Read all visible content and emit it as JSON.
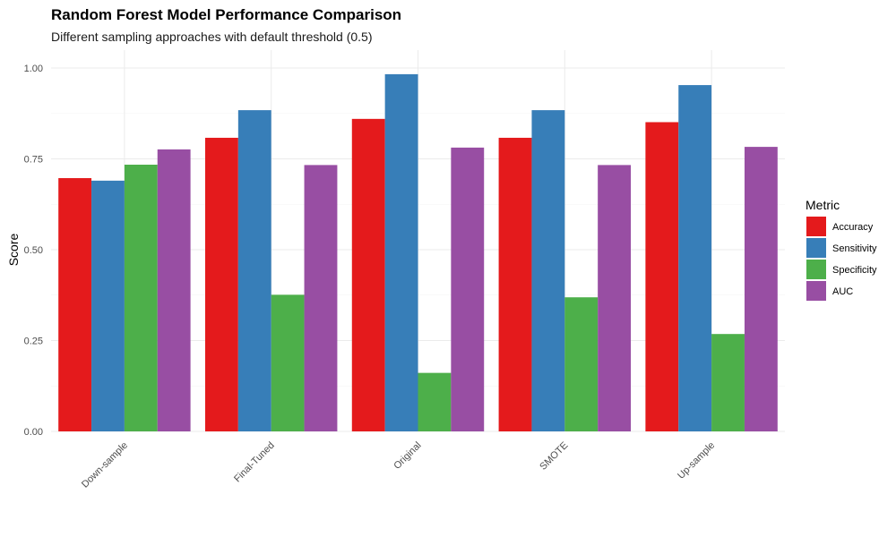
{
  "chart_data": {
    "type": "bar",
    "title": "Random Forest Model Performance Comparison",
    "subtitle": "Different sampling approaches with default threshold (0.5)",
    "xlabel": "",
    "ylabel": "Score",
    "ylim": [
      0,
      1.0
    ],
    "yticks": [
      0.0,
      0.25,
      0.5,
      0.75,
      1.0
    ],
    "ytick_labels": [
      "0.00",
      "0.25",
      "0.50",
      "0.75",
      "1.00"
    ],
    "grid": true,
    "legend_title": "Metric",
    "legend_position": "right",
    "categories": [
      "Down-sample",
      "Final-Tuned",
      "Original",
      "SMOTE",
      "Up-sample"
    ],
    "series": [
      {
        "name": "Accuracy",
        "color": "#E41A1C",
        "values": [
          0.697,
          0.808,
          0.86,
          0.808,
          0.851
        ]
      },
      {
        "name": "Sensitivity",
        "color": "#377EB8",
        "values": [
          0.69,
          0.884,
          0.983,
          0.884,
          0.953
        ]
      },
      {
        "name": "Specificity",
        "color": "#4DAF4A",
        "values": [
          0.734,
          0.376,
          0.161,
          0.369,
          0.268
        ]
      },
      {
        "name": "AUC",
        "color": "#984EA3",
        "values": [
          0.776,
          0.733,
          0.781,
          0.733,
          0.783
        ]
      }
    ]
  }
}
